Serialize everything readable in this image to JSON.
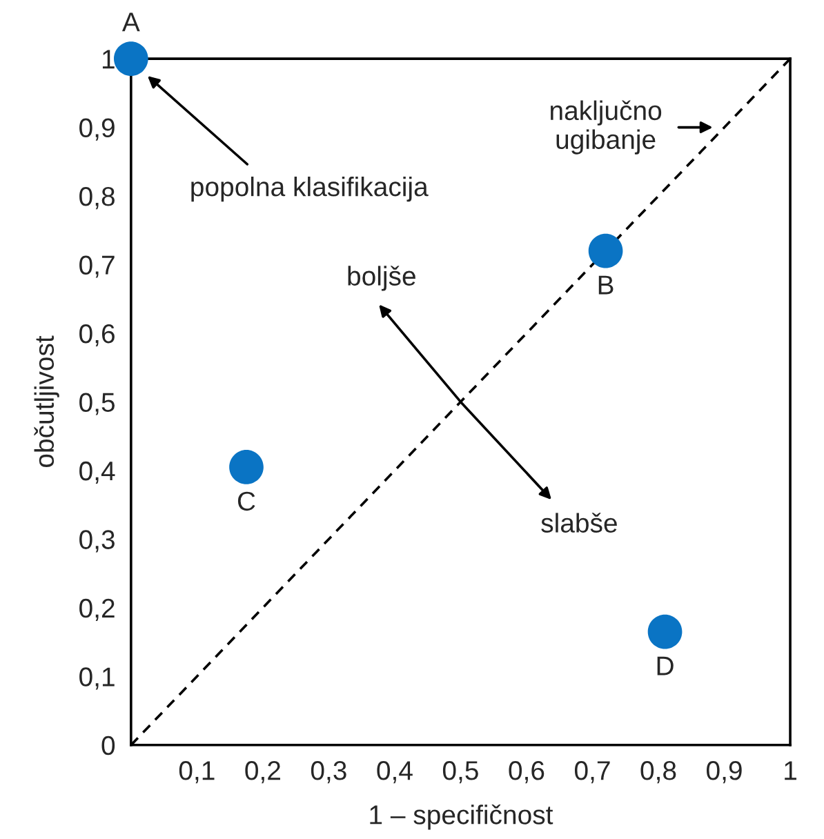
{
  "chart_data": {
    "type": "scatter",
    "xlabel": "1 – specifičnost",
    "ylabel": "občutljivost",
    "xlim": [
      0,
      1
    ],
    "ylim": [
      0,
      1
    ],
    "xticks": [
      {
        "value": 0.1,
        "label": "0,1"
      },
      {
        "value": 0.2,
        "label": "0,2"
      },
      {
        "value": 0.3,
        "label": "0,3"
      },
      {
        "value": 0.4,
        "label": "0,4"
      },
      {
        "value": 0.5,
        "label": "0,5"
      },
      {
        "value": 0.6,
        "label": "0,6"
      },
      {
        "value": 0.7,
        "label": "0,7"
      },
      {
        "value": 0.8,
        "label": "0,8"
      },
      {
        "value": 0.9,
        "label": "0,9"
      },
      1
    ],
    "yticks": [
      0,
      {
        "value": 0.1,
        "label": "0,1"
      },
      {
        "value": 0.2,
        "label": "0,2"
      },
      {
        "value": 0.3,
        "label": "0,3"
      },
      {
        "value": 0.4,
        "label": "0,4"
      },
      {
        "value": 0.5,
        "label": "0,5"
      },
      {
        "value": 0.6,
        "label": "0,6"
      },
      {
        "value": 0.7,
        "label": "0,7"
      },
      {
        "value": 0.8,
        "label": "0,8"
      },
      {
        "value": 0.9,
        "label": "0,9"
      },
      1
    ],
    "series": [
      {
        "color": "#0a74c4",
        "x": [
          0,
          0.72,
          0.175,
          0.81
        ],
        "values": [
          1,
          0.72,
          0.405,
          0.165
        ],
        "marker": "circle"
      },
      {
        "type": "line",
        "color": "#000000",
        "x": [
          0,
          1
        ],
        "values": [
          0,
          1
        ],
        "line_style": "dashed",
        "marker": "none"
      }
    ],
    "annotations": [
      {
        "text": "A",
        "x": 0,
        "y": 1
      },
      {
        "text": "B",
        "x": 0.72,
        "y": 0.72
      },
      {
        "text": "C",
        "x": 0.175,
        "y": 0.405
      },
      {
        "text": "D",
        "x": 0.81,
        "y": 0.165
      },
      {
        "text": "popolna klasifikacija",
        "x": 0.025,
        "y": 0.975
      },
      {
        "text": "naključno\nugibanje",
        "x": 0.9,
        "y": 0.9
      },
      {
        "text": "boljše",
        "x": 0.5,
        "y": 0.5
      },
      {
        "text": "slabše",
        "x": 0.5,
        "y": 0.5
      }
    ],
    "grid": false,
    "legend": false
  }
}
